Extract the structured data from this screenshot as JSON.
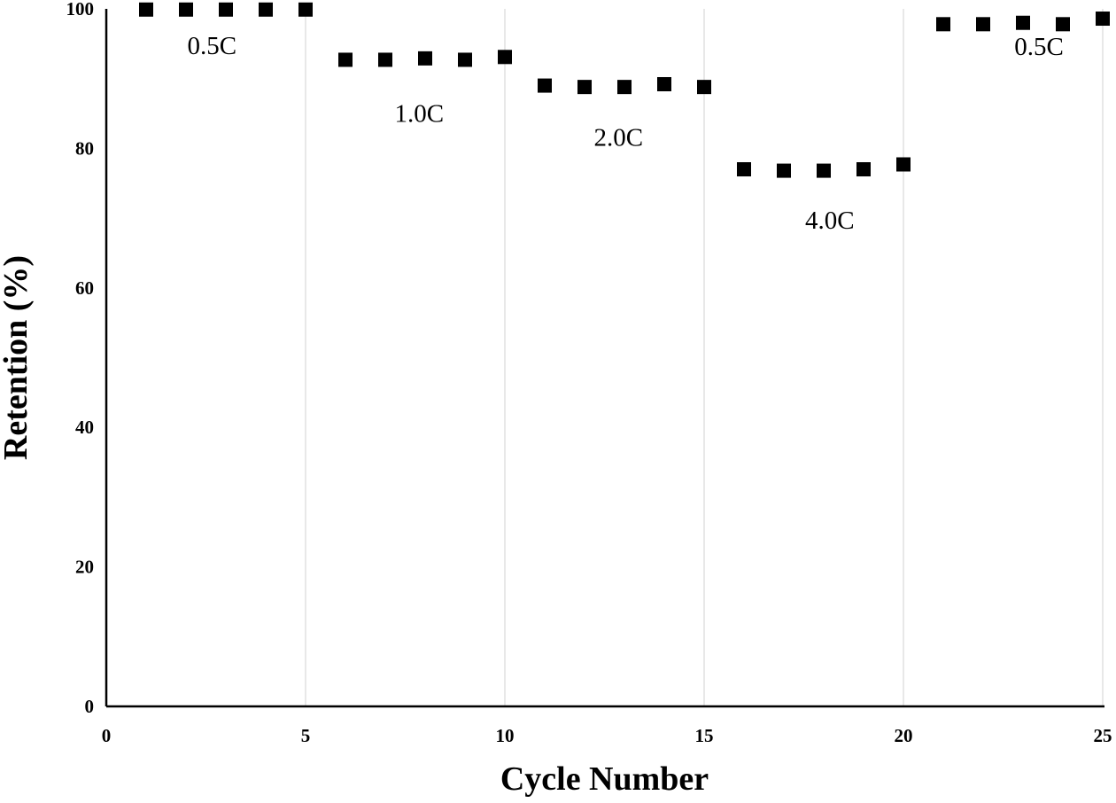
{
  "chart_data": {
    "type": "scatter",
    "title": "",
    "xlabel": "Cycle Number",
    "ylabel": "Retention (%)",
    "xlim": [
      0,
      25
    ],
    "ylim": [
      0,
      100
    ],
    "xticks": [
      0,
      5,
      10,
      15,
      20,
      25
    ],
    "yticks": [
      0,
      20,
      40,
      60,
      80,
      100
    ],
    "grid": "vertical",
    "legend": "none",
    "marker": "square",
    "colors": {
      "marker": "#000000",
      "grid": "#d9d9d9",
      "axis": "#000000"
    },
    "series": [
      {
        "x": [
          1,
          2,
          3,
          4,
          5,
          6,
          7,
          8,
          9,
          10,
          11,
          12,
          13,
          14,
          15,
          16,
          17,
          18,
          19,
          20,
          21,
          22,
          23,
          24,
          25
        ],
        "y": [
          99.9,
          99.9,
          99.9,
          99.9,
          99.9,
          92.7,
          92.7,
          92.9,
          92.7,
          93.1,
          89.0,
          88.8,
          88.8,
          89.2,
          88.8,
          77.0,
          76.8,
          76.8,
          77.0,
          77.7,
          97.8,
          97.8,
          98.0,
          97.8,
          98.6
        ]
      }
    ],
    "annotations": [
      {
        "text": "0.5C",
        "x": 2.65,
        "y": 93.5
      },
      {
        "text": "1.0C",
        "x": 7.85,
        "y": 83.8
      },
      {
        "text": "2.0C",
        "x": 12.85,
        "y": 80.4
      },
      {
        "text": "4.0C",
        "x": 18.15,
        "y": 68.5
      },
      {
        "text": "0.5C",
        "x": 23.4,
        "y": 93.4
      }
    ]
  }
}
